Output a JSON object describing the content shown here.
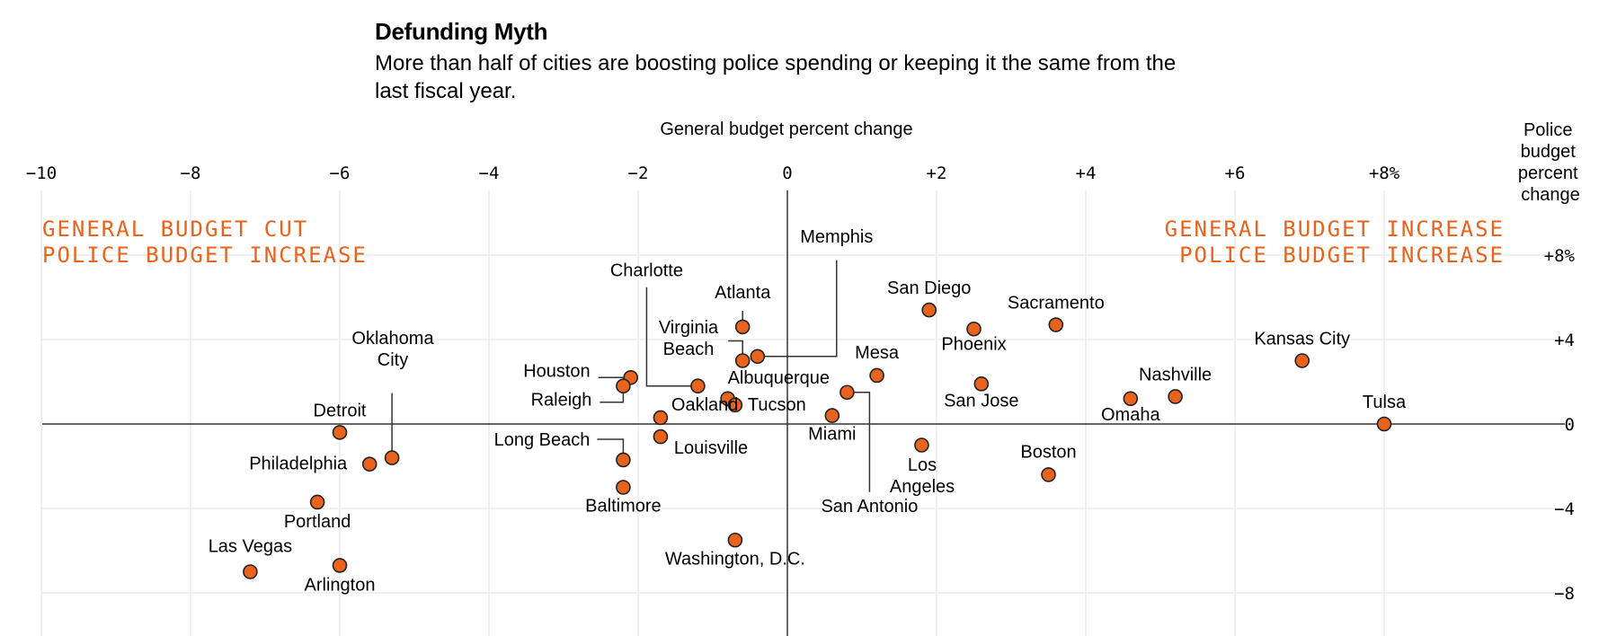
{
  "chart_data": {
    "type": "scatter",
    "title": "Defunding Myth",
    "subtitle": "More than half of cities are boosting police spending or keeping it the same from the last fiscal year.",
    "xlabel": "General budget percent change",
    "ylabel": "Police budget percent change",
    "xlim": [
      -10,
      10.4
    ],
    "ylim": [
      -10,
      10.4
    ],
    "x_ticks": [
      {
        "value": -10,
        "label": "−10"
      },
      {
        "value": -8,
        "label": "−8"
      },
      {
        "value": -6,
        "label": "−6"
      },
      {
        "value": -4,
        "label": "−4"
      },
      {
        "value": -2,
        "label": "−2"
      },
      {
        "value": 0,
        "label": "0"
      },
      {
        "value": 2,
        "label": "+2"
      },
      {
        "value": 4,
        "label": "+4"
      },
      {
        "value": 6,
        "label": "+6"
      },
      {
        "value": 8,
        "label": "+8%"
      }
    ],
    "y_ticks": [
      {
        "value": 8,
        "label": "+8%"
      },
      {
        "value": 4,
        "label": "+4"
      },
      {
        "value": 0,
        "label": "0"
      },
      {
        "value": -4,
        "label": "−4"
      },
      {
        "value": -8,
        "label": "−8"
      }
    ],
    "quadrant_labels": {
      "top_left": [
        "GENERAL BUDGET CUT",
        "POLICE BUDGET INCREASE"
      ],
      "top_right": [
        "GENERAL BUDGET INCREASE",
        "POLICE BUDGET INCREASE"
      ]
    },
    "point_color": "#e8631c",
    "points": [
      {
        "name": "Detroit",
        "x": -6.0,
        "y": -0.4
      },
      {
        "name": "Oklahoma City",
        "x": -5.3,
        "y": -1.6
      },
      {
        "name": "Philadelphia",
        "x": -5.6,
        "y": -1.9
      },
      {
        "name": "Portland",
        "x": -6.3,
        "y": -3.7
      },
      {
        "name": "Las Vegas",
        "x": -7.2,
        "y": -7.0
      },
      {
        "name": "Arlington",
        "x": -6.0,
        "y": -6.7
      },
      {
        "name": "Houston",
        "x": -2.1,
        "y": 2.2
      },
      {
        "name": "Raleigh",
        "x": -2.2,
        "y": 1.8
      },
      {
        "name": "Charlotte",
        "x": -1.2,
        "y": 1.8
      },
      {
        "name": "Oakland",
        "x": -1.7,
        "y": 0.3
      },
      {
        "name": "Long Beach",
        "x": -2.2,
        "y": -1.7
      },
      {
        "name": "Louisville",
        "x": -1.7,
        "y": -0.6
      },
      {
        "name": "Baltimore",
        "x": -2.2,
        "y": -3.0
      },
      {
        "name": "Atlanta",
        "x": -0.6,
        "y": 4.6
      },
      {
        "name": "Virginia Beach",
        "x": -0.6,
        "y": 3.0
      },
      {
        "name": "Memphis",
        "x": -0.4,
        "y": 3.2
      },
      {
        "name": "Albuquerque",
        "x": -0.8,
        "y": 1.2
      },
      {
        "name": "Tucson",
        "x": -0.7,
        "y": 0.9
      },
      {
        "name": "Miami",
        "x": 0.6,
        "y": 0.4
      },
      {
        "name": "San Antonio",
        "x": 0.8,
        "y": 1.5
      },
      {
        "name": "Mesa",
        "x": 1.2,
        "y": 2.3
      },
      {
        "name": "Washington, D.C.",
        "x": -0.7,
        "y": -5.5
      },
      {
        "name": "San Diego",
        "x": 1.9,
        "y": 5.4
      },
      {
        "name": "Phoenix",
        "x": 2.5,
        "y": 4.5
      },
      {
        "name": "Sacramento",
        "x": 3.6,
        "y": 4.7
      },
      {
        "name": "San Jose",
        "x": 2.6,
        "y": 1.9
      },
      {
        "name": "Los Angeles",
        "x": 1.8,
        "y": -1.0
      },
      {
        "name": "Boston",
        "x": 3.5,
        "y": -2.4
      },
      {
        "name": "Kansas City",
        "x": 6.9,
        "y": 3.0
      },
      {
        "name": "Nashville",
        "x": 5.2,
        "y": 1.3
      },
      {
        "name": "Omaha",
        "x": 4.6,
        "y": 1.2
      },
      {
        "name": "Tulsa",
        "x": 8.0,
        "y": 0.0
      }
    ]
  }
}
